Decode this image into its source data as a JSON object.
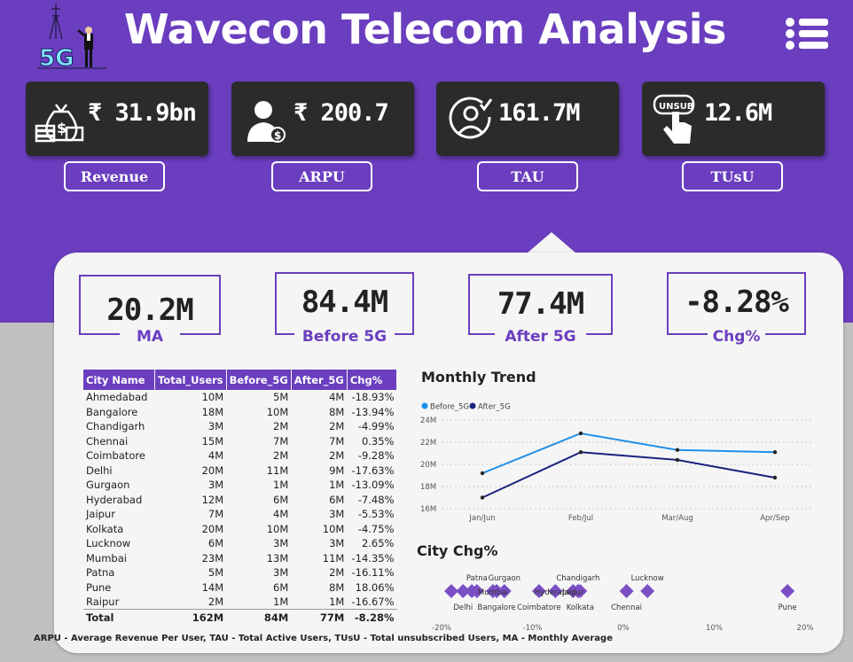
{
  "header": {
    "title": "Wavecon Telecom Analysis",
    "logo_text": "5G"
  },
  "kpis": [
    {
      "value": "₹ 31.9bn",
      "label": "Revenue",
      "icon": "money-bag-icon"
    },
    {
      "value": "₹ 200.7",
      "label": "ARPU",
      "icon": "user-dollar-icon"
    },
    {
      "value": "161.7M",
      "label": "TAU",
      "icon": "user-check-icon"
    },
    {
      "value": "12.6M",
      "label": "TUsU",
      "icon": "unsub-hand-icon",
      "icon_text": "UNSUB"
    }
  ],
  "stats": [
    {
      "value": "20.2M",
      "label": "MA"
    },
    {
      "value": "84.4M",
      "label": "Before 5G"
    },
    {
      "value": "77.4M",
      "label": "After 5G"
    },
    {
      "value": "-8.28%",
      "label": "Chg%"
    }
  ],
  "table": {
    "headers": [
      "City Name",
      "Total_Users",
      "Before_5G",
      "After_5G",
      "Chg%"
    ],
    "rows": [
      [
        "Ahmedabad",
        "10M",
        "5M",
        "4M",
        "-18.93%"
      ],
      [
        "Bangalore",
        "18M",
        "10M",
        "8M",
        "-13.94%"
      ],
      [
        "Chandigarh",
        "3M",
        "2M",
        "2M",
        "-4.99%"
      ],
      [
        "Chennai",
        "15M",
        "7M",
        "7M",
        "0.35%"
      ],
      [
        "Coimbatore",
        "4M",
        "2M",
        "2M",
        "-9.28%"
      ],
      [
        "Delhi",
        "20M",
        "11M",
        "9M",
        "-17.63%"
      ],
      [
        "Gurgaon",
        "3M",
        "1M",
        "1M",
        "-13.09%"
      ],
      [
        "Hyderabad",
        "12M",
        "6M",
        "6M",
        "-7.48%"
      ],
      [
        "Jaipur",
        "7M",
        "4M",
        "3M",
        "-5.53%"
      ],
      [
        "Kolkata",
        "20M",
        "10M",
        "10M",
        "-4.75%"
      ],
      [
        "Lucknow",
        "6M",
        "3M",
        "3M",
        "2.65%"
      ],
      [
        "Mumbai",
        "23M",
        "13M",
        "11M",
        "-14.35%"
      ],
      [
        "Patna",
        "5M",
        "3M",
        "2M",
        "-16.11%"
      ],
      [
        "Pune",
        "14M",
        "6M",
        "8M",
        "18.06%"
      ],
      [
        "Raipur",
        "2M",
        "1M",
        "1M",
        "-16.67%"
      ]
    ],
    "total": [
      "Total",
      "162M",
      "84M",
      "77M",
      "-8.28%"
    ]
  },
  "trend_title": "Monthly Trend",
  "city_chg_title": "City Chg%",
  "footer": "ARPU - Average Revenue Per User, TAU - Total Active Users, TUsU - Total unsubscribed Users, MA - Monthly Average",
  "colors": {
    "purple": "#6a3ebf",
    "before": "#1e8fe8",
    "after": "#1a237e",
    "diamond": "#7b4fc4"
  },
  "chart_data": [
    {
      "type": "line",
      "title": "Monthly Trend",
      "categories": [
        "Jan/Jun",
        "Feb/Jul",
        "Mar/Aug",
        "Apr/Sep"
      ],
      "series": [
        {
          "name": "Before_5G",
          "values": [
            19.2,
            22.8,
            21.3,
            21.1
          ]
        },
        {
          "name": "After_5G",
          "values": [
            17.0,
            21.1,
            20.4,
            18.8
          ]
        }
      ],
      "yticks": [
        "16M",
        "18M",
        "20M",
        "22M",
        "24M"
      ],
      "ylim": [
        16,
        24
      ]
    },
    {
      "type": "scatter",
      "title": "City Chg%",
      "xticks": [
        "-20%",
        "-10%",
        "0%",
        "10%",
        "20%"
      ],
      "xlim": [
        -20,
        20
      ],
      "points": [
        {
          "city": "Ahmedabad",
          "value": -18.93
        },
        {
          "city": "Delhi",
          "value": -17.63
        },
        {
          "city": "Raipur",
          "value": -16.67
        },
        {
          "city": "Patna",
          "value": -16.11
        },
        {
          "city": "Mumbai",
          "value": -14.35
        },
        {
          "city": "Bangalore",
          "value": -13.94
        },
        {
          "city": "Gurgaon",
          "value": -13.09
        },
        {
          "city": "Coimbatore",
          "value": -9.28
        },
        {
          "city": "Hyderabad",
          "value": -7.48
        },
        {
          "city": "Jaipur",
          "value": -5.53
        },
        {
          "city": "Chandigarh",
          "value": -4.99
        },
        {
          "city": "Kolkata",
          "value": -4.75
        },
        {
          "city": "Chennai",
          "value": 0.35
        },
        {
          "city": "Lucknow",
          "value": 2.65
        },
        {
          "city": "Pune",
          "value": 18.06
        }
      ],
      "labels_above": [
        "Patna",
        "Gurgaon",
        "Chandigarh",
        "Lucknow"
      ],
      "labels_mid": [
        "Mumbai",
        "Jaipur",
        "Hyderabad"
      ],
      "labels_below": [
        "Delhi",
        "Bangalore",
        "Coimbatore",
        "Kolkata",
        "Chennai",
        "Pune"
      ]
    }
  ]
}
